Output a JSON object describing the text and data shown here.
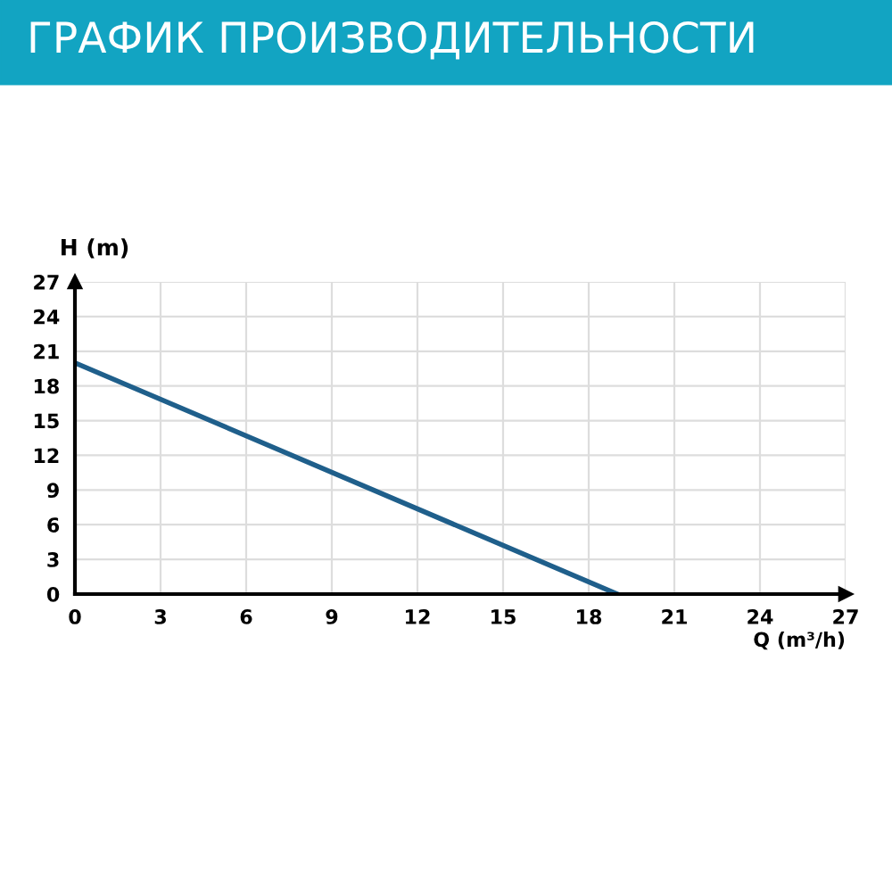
{
  "chart_data": {
    "type": "line",
    "title": "ГРАФИК ПРОИЗВОДИТЕЛЬНОСТИ",
    "xlabel": "Q (m³/h)",
    "ylabel": "H (m)",
    "x": [
      0,
      19
    ],
    "series": [
      {
        "color": "#1f5f8b",
        "values": [
          20,
          0
        ]
      }
    ],
    "xlim": [
      0,
      27
    ],
    "ylim": [
      0,
      27
    ],
    "xticks": [
      0,
      3,
      6,
      9,
      12,
      15,
      18,
      21,
      24,
      27
    ],
    "yticks": [
      0,
      3,
      6,
      9,
      12,
      15,
      18,
      21,
      24,
      27
    ],
    "grid": true,
    "marker": "none",
    "line_style": "solid"
  }
}
